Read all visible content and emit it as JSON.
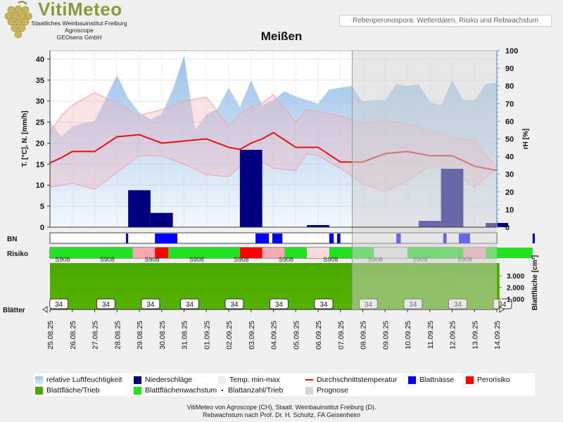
{
  "header": {
    "logo_title": "VitiMeteo",
    "logo_line1": "Staatliches Weinbauinstitut Freiburg",
    "logo_line2": "Agroscope",
    "logo_line3": "GEOsens GmbH",
    "subtitle": "Rebenperonospora: Wetterdaten, Risiko und Rebwachstum"
  },
  "colors": {
    "humidity": "#9cc3ea",
    "precip": "#000080",
    "temp_line": "#e81010",
    "temp_band": "#f7b0b8",
    "leaf_wet": "#0000ff",
    "perorisiko": "#ff0000",
    "leaf_area": "#4ca800",
    "leaf_growth": "#22e022",
    "forecast": "#cfcfcf"
  },
  "chart_data": {
    "type": "line",
    "title": "Meißen",
    "x": [
      "25.08.25",
      "26.08.25",
      "27.08.25",
      "28.08.25",
      "29.08.25",
      "30.08.25",
      "31.08.25",
      "01.09.25",
      "02.09.25",
      "03.09.25",
      "04.09.25",
      "05.09.25",
      "06.09.25",
      "07.09.25",
      "08.09.25",
      "09.09.25",
      "10.09.25",
      "11.09.25",
      "12.09.25",
      "13.09.25",
      "14.09.25"
    ],
    "left_axis": {
      "label": "T. [°C], N. [mm/h]",
      "ylim": [
        0,
        42
      ],
      "ticks": [
        0,
        5,
        10,
        15,
        20,
        25,
        30,
        35,
        40
      ]
    },
    "right_axis": {
      "label": "rH [%]",
      "ylim": [
        0,
        100
      ],
      "ticks": [
        0,
        10,
        20,
        30,
        40,
        50,
        60,
        70,
        80,
        90,
        100
      ]
    },
    "leaf_axis": {
      "label": "Blattfläche [cm²]",
      "ticks": [
        "1.000",
        "2.000",
        "3.000"
      ]
    },
    "forecast_from": "08.09.25",
    "series": {
      "humidity": {
        "name": "relative Luftfeuchtigkeit",
        "x": [
          0,
          0.5,
          1,
          1.5,
          2,
          2.5,
          3,
          3.5,
          4,
          4.5,
          5,
          5.5,
          6,
          6.5,
          7,
          7.5,
          8,
          8.5,
          9,
          9.5,
          10,
          10.5,
          11,
          11.5,
          12,
          12.5,
          13,
          13.5,
          14,
          14.5,
          15,
          15.5,
          16,
          16.5,
          17,
          17.5,
          18,
          18.5,
          19,
          19.5,
          20
        ],
        "values": [
          60,
          51,
          57,
          59,
          60,
          73,
          86,
          73,
          65,
          61,
          64,
          78,
          97,
          55,
          64,
          67,
          79,
          68,
          83,
          69,
          72,
          77,
          74,
          72,
          70,
          78,
          79,
          80,
          71,
          72,
          72,
          81,
          80,
          81,
          71,
          69,
          83,
          72,
          72,
          81,
          82
        ]
      },
      "precipitation": {
        "name": "Niederschläge",
        "bars": [
          {
            "start": 3.5,
            "end": 4.5,
            "value": 8.8
          },
          {
            "start": 4.5,
            "end": 5.5,
            "value": 3.4
          },
          {
            "start": 8.5,
            "end": 9.5,
            "value": 18.4
          },
          {
            "start": 11.5,
            "end": 12.5,
            "value": 0.5
          },
          {
            "start": 16.5,
            "end": 17.5,
            "value": 1.5
          },
          {
            "start": 17.5,
            "end": 18.5,
            "value": 13.9
          },
          {
            "start": 19.5,
            "end": 20.5,
            "value": 1.0
          }
        ]
      },
      "temp_max": {
        "name": "Temp. min-max",
        "x": [
          0,
          0.5,
          1,
          2,
          3,
          4,
          5,
          6,
          7,
          8,
          8.5,
          9,
          9.5,
          10,
          11,
          11.5,
          12,
          13,
          14,
          15,
          16,
          17,
          18,
          19,
          20
        ],
        "values": [
          22.5,
          26.5,
          29,
          32,
          29.5,
          26.5,
          28,
          30,
          31,
          24,
          27,
          28.5,
          29.5,
          31.5,
          25,
          28,
          27.5,
          26.5,
          24.5,
          25.5,
          24.5,
          23,
          21.5,
          20.5,
          14
        ]
      },
      "temp_min": {
        "name": "Temp. min-max",
        "x": [
          0,
          0.5,
          1,
          2,
          3,
          4,
          5,
          6,
          7,
          8,
          8.5,
          9,
          9.5,
          10,
          11,
          11.5,
          12,
          13,
          14,
          15,
          16,
          17,
          18,
          19,
          20
        ],
        "values": [
          9.5,
          10,
          10.5,
          9,
          13,
          17,
          17,
          15,
          12.5,
          12,
          14.5,
          16,
          15.5,
          14,
          13.5,
          17.5,
          17,
          14,
          10.2,
          8.5,
          11,
          14.5,
          13.5,
          9.5,
          14
        ]
      },
      "temp_avg": {
        "name": "Durchschnittstemperatur",
        "x": [
          0,
          0.5,
          1,
          2,
          3,
          4,
          5,
          6,
          7,
          8,
          8.5,
          9,
          9.5,
          10,
          11,
          11.5,
          12,
          13,
          14,
          15,
          16,
          17,
          18,
          19,
          20
        ],
        "values": [
          15.3,
          16.5,
          18,
          18,
          21.5,
          22,
          20,
          20.5,
          21,
          19,
          18.5,
          20,
          21,
          22.5,
          19,
          19,
          19,
          15.5,
          15.5,
          17.5,
          18,
          17,
          17,
          14.5,
          13.5
        ]
      }
    },
    "leaf_wetness": {
      "label": "BN",
      "segments": [
        {
          "start": 3.4,
          "end": 3.5
        },
        {
          "start": 4.7,
          "end": 5.7
        },
        {
          "start": 9.2,
          "end": 9.8
        },
        {
          "start": 9.95,
          "end": 10.4
        },
        {
          "start": 12.5,
          "end": 12.7
        },
        {
          "start": 12.85,
          "end": 13.0
        },
        {
          "start": 15.5,
          "end": 15.7
        },
        {
          "start": 17.6,
          "end": 17.75
        },
        {
          "start": 18.3,
          "end": 18.8
        },
        {
          "start": 21.6,
          "end": 21.7
        }
      ]
    },
    "risk": {
      "label": "Risiko",
      "code": "S908",
      "segments": [
        {
          "start": 0,
          "end": 3.7,
          "color": "green"
        },
        {
          "start": 3.7,
          "end": 4.7,
          "color": "pink"
        },
        {
          "start": 4.7,
          "end": 5.3,
          "color": "red"
        },
        {
          "start": 5.3,
          "end": 8.5,
          "color": "green"
        },
        {
          "start": 8.5,
          "end": 9.5,
          "color": "red"
        },
        {
          "start": 9.5,
          "end": 10.5,
          "color": "pink"
        },
        {
          "start": 10.5,
          "end": 11.5,
          "color": "green"
        },
        {
          "start": 11.5,
          "end": 12.5,
          "color": "lightpink"
        },
        {
          "start": 12.5,
          "end": 14.5,
          "color": "green"
        },
        {
          "start": 14.5,
          "end": 16.0,
          "color": "lightgray"
        },
        {
          "start": 16.0,
          "end": 18.5,
          "color": "green"
        },
        {
          "start": 18.5,
          "end": 19.5,
          "color": "pink"
        },
        {
          "start": 19.5,
          "end": 21.6,
          "color": "green"
        }
      ],
      "labels_x": [
        0.5,
        2.5,
        4.5,
        6.5,
        8.5,
        10.5,
        12.5,
        14.5,
        16.5,
        18.5
      ]
    },
    "leaf_count": {
      "label": "Blätter",
      "values": [
        34,
        34,
        34,
        34,
        34,
        34,
        34,
        34,
        34,
        34,
        34
      ],
      "x": [
        0.4,
        2.5,
        4.5,
        6.25,
        8.25,
        10.25,
        12.25,
        14.25,
        16.25,
        18.25,
        20.25
      ]
    }
  },
  "legend": {
    "humidity": "relative Luftfeuchtigkeit",
    "precip": "Niederschläge",
    "temp_range": "Temp. min-max",
    "temp_avg": "Durchschnittstemperatur",
    "leaf_wet": "Blattnässe",
    "perorisiko": "Perorisiko",
    "leaf_area": "Blattfläche/Trieb",
    "leaf_growth": "Blattflächenwachstum",
    "leaf_count": "Blattanzahl/Trieb",
    "forecast": "Prognose"
  },
  "footer": {
    "line1": "VitiMeteo von Agroscope (CH), Staatl. Weinbauinstitut Freiburg (D).",
    "line2": "Rebwachstum nach Prof. Dr. H. Schultz, FA Geisenheim"
  }
}
